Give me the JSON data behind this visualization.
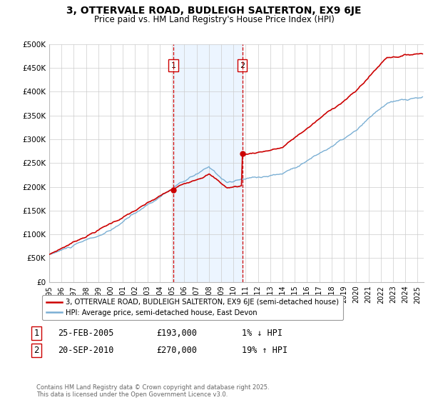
{
  "title": "3, OTTERVALE ROAD, BUDLEIGH SALTERTON, EX9 6JE",
  "subtitle": "Price paid vs. HM Land Registry's House Price Index (HPI)",
  "title_fontsize": 10,
  "subtitle_fontsize": 8.5,
  "background_color": "#ffffff",
  "plot_bg_color": "#ffffff",
  "grid_color": "#cccccc",
  "sale1": {
    "date_num": 2005.12,
    "price": 193000,
    "label": "1",
    "date_str": "25-FEB-2005",
    "change": "1% ↓ HPI"
  },
  "sale2": {
    "date_num": 2010.72,
    "price": 270000,
    "label": "2",
    "date_str": "20-SEP-2010",
    "change": "19% ↑ HPI"
  },
  "shade_color": "#ddeeff",
  "shade_alpha": 0.55,
  "vline_color": "#cc0000",
  "price_line_color": "#cc0000",
  "hpi_line_color": "#7aafd4",
  "xlim": [
    1995,
    2025.5
  ],
  "ylim": [
    0,
    500000
  ],
  "yticks": [
    0,
    50000,
    100000,
    150000,
    200000,
    250000,
    300000,
    350000,
    400000,
    450000,
    500000
  ],
  "ytick_labels": [
    "£0",
    "£50K",
    "£100K",
    "£150K",
    "£200K",
    "£250K",
    "£300K",
    "£350K",
    "£400K",
    "£450K",
    "£500K"
  ],
  "legend_label_price": "3, OTTERVALE ROAD, BUDLEIGH SALTERTON, EX9 6JE (semi-detached house)",
  "legend_label_hpi": "HPI: Average price, semi-detached house, East Devon",
  "footer_text": "Contains HM Land Registry data © Crown copyright and database right 2025.\nThis data is licensed under the Open Government Licence v3.0.",
  "table_row1": [
    "1",
    "25-FEB-2005",
    "£193,000",
    "1% ↓ HPI"
  ],
  "table_row2": [
    "2",
    "20-SEP-2010",
    "£270,000",
    "19% ↑ HPI"
  ]
}
